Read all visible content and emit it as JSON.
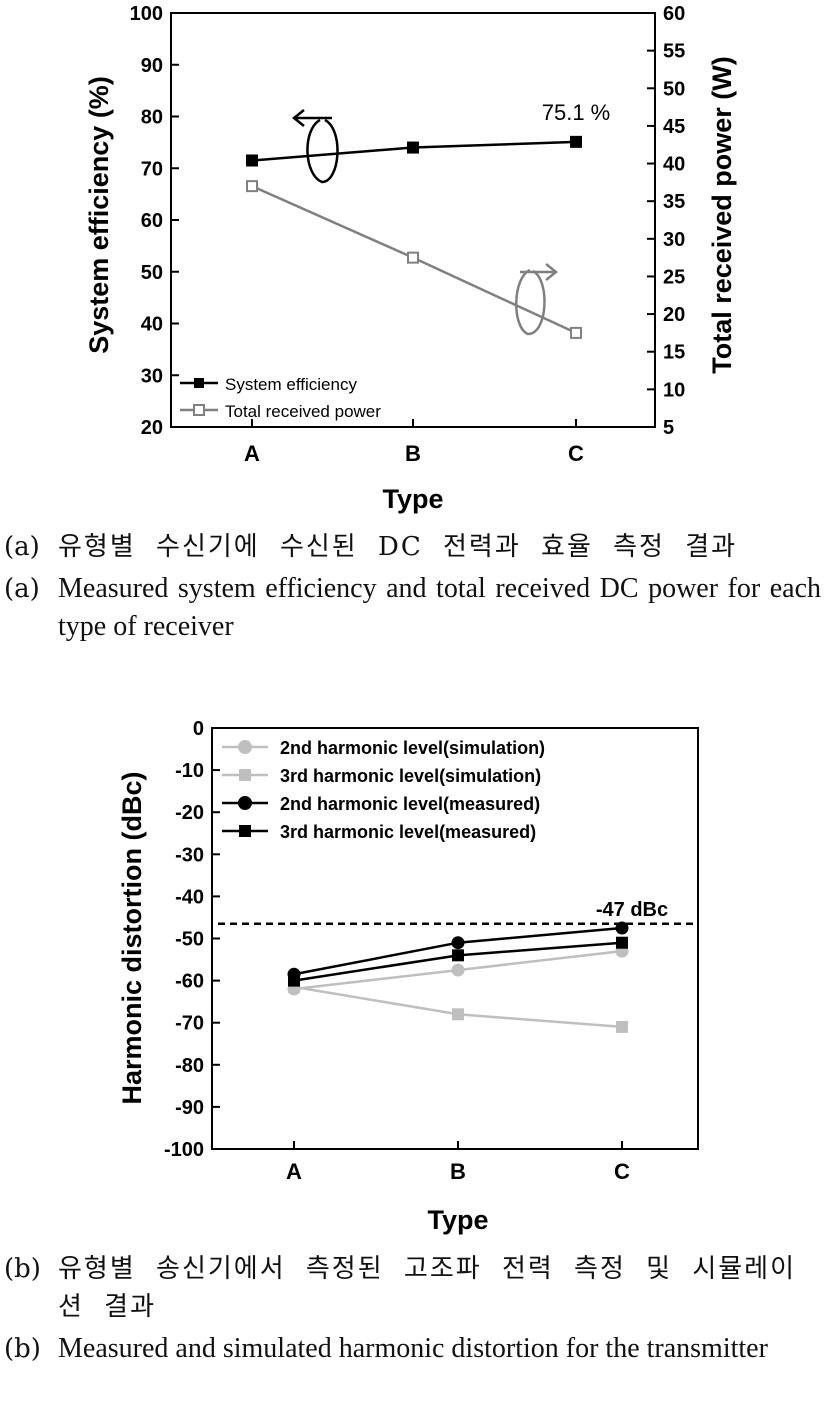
{
  "chart_data": [
    {
      "type": "line",
      "xlabel": "Type",
      "ylabel": "System efficiency (%)",
      "y2label": "Total received power (W)",
      "categories": [
        "A",
        "B",
        "C"
      ],
      "ylim": [
        20,
        100
      ],
      "y2lim": [
        5,
        60
      ],
      "yticks": [
        "20",
        "30",
        "40",
        "50",
        "60",
        "70",
        "80",
        "90",
        "100"
      ],
      "y2ticks": [
        "5",
        "10",
        "15",
        "20",
        "25",
        "30",
        "35",
        "40",
        "45",
        "50",
        "55",
        "60"
      ],
      "series": [
        {
          "name": "System efficiency",
          "axis": "left",
          "values": [
            71.5,
            74.0,
            75.1
          ],
          "color": "#000000",
          "marker": "filled-square"
        },
        {
          "name": "Total received power",
          "axis": "right",
          "values": [
            37.0,
            27.5,
            17.5
          ],
          "color": "#808080",
          "marker": "open-square"
        }
      ],
      "annotations": [
        {
          "text": "75.1 %"
        }
      ],
      "legend": "bottom-left",
      "grid": false
    },
    {
      "type": "line",
      "xlabel": "Type",
      "ylabel": "Harmonic distortion (dBc)",
      "categories": [
        "A",
        "B",
        "C"
      ],
      "ylim": [
        -100,
        0
      ],
      "yticks": [
        "0",
        "-10",
        "-20",
        "-30",
        "-40",
        "-50",
        "-60",
        "-70",
        "-80",
        "-90",
        "-100"
      ],
      "series": [
        {
          "name": "2nd harmonic level(simulation)",
          "values": [
            -62,
            -57.5,
            -53
          ],
          "color": "#bfbfbf",
          "marker": "circle"
        },
        {
          "name": "3rd harmonic level(simulation)",
          "values": [
            -61.5,
            -68,
            -71
          ],
          "color": "#bfbfbf",
          "marker": "square"
        },
        {
          "name": "2nd harmonic level(measured)",
          "values": [
            -58.5,
            -51,
            -47.5
          ],
          "color": "#000000",
          "marker": "circle"
        },
        {
          "name": "3rd harmonic level(measured)",
          "values": [
            -60,
            -54,
            -51
          ],
          "color": "#000000",
          "marker": "square"
        }
      ],
      "reference_line": {
        "value": -46.5,
        "label": "-47 dBc"
      },
      "legend": "top-left",
      "grid": false
    }
  ],
  "captions": {
    "a_ko_tag": "(a)",
    "a_ko": "유형별 수신기에 수신된 DC 전력과 효율 측정 결과",
    "a_en_tag": "(a)",
    "a_en": "Measured system efficiency and total received DC power for each type of receiver",
    "b_ko_tag": "(b)",
    "b_ko": "유형별 송신기에서 측정된 고조파 전력 측정 및 시뮬레이션 결과",
    "b_en_tag": "(b)",
    "b_en": "Measured and simulated harmonic distortion for the transmitter"
  }
}
